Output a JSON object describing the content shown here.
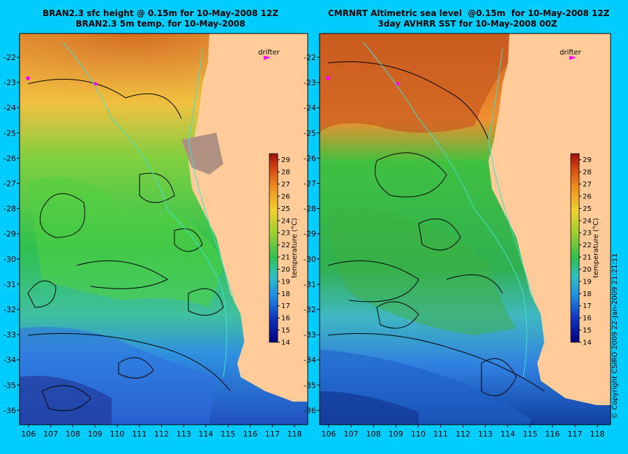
{
  "panels": [
    {
      "id": "left",
      "title_line1": "BRAN2.3 sfc height @ 0.15m for 10-May-2008 12Z",
      "title_line2": "BRAN2.3 5m temp. for 10-May-2008",
      "drifter_label": "drifter"
    },
    {
      "id": "right",
      "title_line1": "CMRNRT Altimetric sea level  @0.15m  for 10-May-2008 12Z",
      "title_line2": "3day AVHRR SST for 10-May-2008 00Z",
      "drifter_label": "drifter"
    }
  ],
  "axes": {
    "lon_ticks": [
      "106",
      "107",
      "108",
      "109",
      "110",
      "111",
      "112",
      "113",
      "114",
      "115",
      "116",
      "117",
      "118"
    ],
    "lat_ticks": [
      "-22",
      "-23",
      "-24",
      "-25",
      "-26",
      "-27",
      "-28",
      "-29",
      "-30",
      "-31",
      "-32",
      "-33",
      "-34",
      "-35",
      "-36"
    ]
  },
  "colorbar": {
    "label": "temperature (°C)",
    "ticks": [
      "14",
      "15",
      "16",
      "17",
      "18",
      "19",
      "20",
      "21",
      "22",
      "23",
      "24",
      "25",
      "26",
      "27",
      "28",
      "29"
    ],
    "min": 14,
    "max": 29.5
  },
  "copyright": "© Copyright CSIRO 2009   22-Jan-2009 21:21:11",
  "colors": {
    "background": "#00ccff",
    "land": "#ffcc99",
    "contour": "#000000",
    "bathymetry": "#40e0d0",
    "drifter": "#ff00ff"
  }
}
